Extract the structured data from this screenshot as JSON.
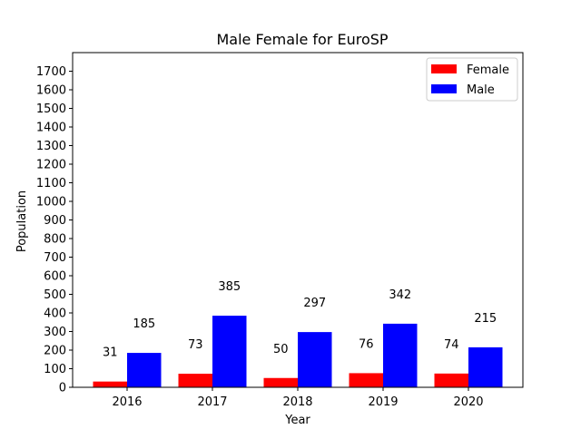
{
  "chart_data": {
    "type": "bar",
    "title": "Male Female for EuroSP",
    "xlabel": "Year",
    "ylabel": "Population",
    "categories": [
      "2016",
      "2017",
      "2018",
      "2019",
      "2020"
    ],
    "series": [
      {
        "name": "Female",
        "color": "#ff0000",
        "values": [
          31,
          73,
          50,
          76,
          74
        ]
      },
      {
        "name": "Male",
        "color": "#0000ff",
        "values": [
          185,
          385,
          297,
          342,
          215
        ]
      }
    ],
    "ylim": [
      0,
      1800
    ],
    "yticks": [
      0,
      100,
      200,
      300,
      400,
      500,
      600,
      700,
      800,
      900,
      1000,
      1100,
      1200,
      1300,
      1400,
      1500,
      1600,
      1700
    ],
    "legend": "top-right",
    "grid": false
  }
}
